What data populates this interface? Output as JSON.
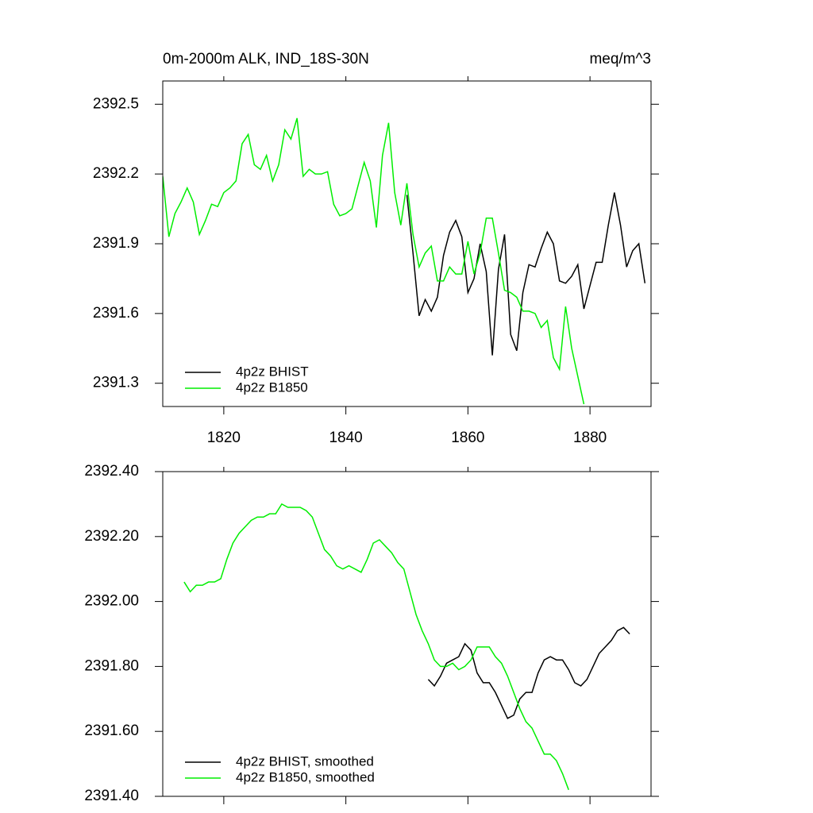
{
  "chart_data": [
    {
      "type": "line",
      "title": "0m-2000m ALK, IND_18S-30N",
      "right_title": "meq/m^3",
      "xlim": [
        1810,
        1890
      ],
      "xticks": [
        1820,
        1840,
        1860,
        1880
      ],
      "ylim": [
        2391.2,
        2392.6
      ],
      "yticks": [
        2391.3,
        2391.6,
        2391.9,
        2392.2,
        2392.5
      ],
      "legend": "lower left",
      "series": [
        {
          "name": "4p2z BHIST",
          "color": "#000000",
          "x": [
            1850,
            1851,
            1852,
            1853,
            1854,
            1855,
            1856,
            1857,
            1858,
            1859,
            1860,
            1861,
            1862,
            1863,
            1864,
            1865,
            1866,
            1867,
            1868,
            1869,
            1870,
            1871,
            1872,
            1873,
            1874,
            1875,
            1876,
            1877,
            1878,
            1879,
            1880,
            1881,
            1882,
            1883,
            1884,
            1885,
            1886,
            1887,
            1888,
            1889
          ],
          "values": [
            2392.11,
            2391.86,
            2391.59,
            2391.66,
            2391.61,
            2391.67,
            2391.85,
            2391.95,
            2392.0,
            2391.93,
            2391.69,
            2391.75,
            2391.9,
            2391.78,
            2391.42,
            2391.79,
            2391.94,
            2391.51,
            2391.44,
            2391.69,
            2391.81,
            2391.8,
            2391.88,
            2391.95,
            2391.9,
            2391.74,
            2391.73,
            2391.76,
            2391.81,
            2391.62,
            2391.72,
            2391.82,
            2391.82,
            2391.98,
            2392.12,
            2391.98,
            2391.8,
            2391.87,
            2391.9,
            2391.73
          ]
        },
        {
          "name": "4p2z B1850",
          "color": "#00ee00",
          "x": [
            1810,
            1811,
            1812,
            1813,
            1814,
            1815,
            1816,
            1817,
            1818,
            1819,
            1820,
            1821,
            1822,
            1823,
            1824,
            1825,
            1826,
            1827,
            1828,
            1829,
            1830,
            1831,
            1832,
            1833,
            1834,
            1835,
            1836,
            1837,
            1838,
            1839,
            1840,
            1841,
            1842,
            1843,
            1844,
            1845,
            1846,
            1847,
            1848,
            1849,
            1850,
            1851,
            1852,
            1853,
            1854,
            1855,
            1856,
            1857,
            1858,
            1859,
            1860,
            1861,
            1862,
            1863,
            1864,
            1865,
            1866,
            1867,
            1868,
            1869,
            1870,
            1871,
            1872,
            1873,
            1874,
            1875,
            1876,
            1877,
            1878,
            1879
          ],
          "values": [
            2392.19,
            2391.93,
            2392.03,
            2392.08,
            2392.14,
            2392.08,
            2391.94,
            2392.0,
            2392.07,
            2392.06,
            2392.12,
            2392.14,
            2392.17,
            2392.33,
            2392.37,
            2392.24,
            2392.22,
            2392.28,
            2392.17,
            2392.24,
            2392.39,
            2392.35,
            2392.44,
            2392.19,
            2392.22,
            2392.2,
            2392.2,
            2392.21,
            2392.07,
            2392.02,
            2392.03,
            2392.05,
            2392.15,
            2392.25,
            2392.17,
            2391.97,
            2392.28,
            2392.42,
            2392.12,
            2391.98,
            2392.16,
            2391.94,
            2391.8,
            2391.86,
            2391.89,
            2391.74,
            2391.74,
            2391.8,
            2391.77,
            2391.77,
            2391.91,
            2391.77,
            2391.86,
            2392.01,
            2392.01,
            2391.86,
            2391.7,
            2391.69,
            2391.67,
            2391.61,
            2391.61,
            2391.6,
            2391.54,
            2391.57,
            2391.41,
            2391.36,
            2391.63,
            2391.45,
            2391.33,
            2391.21
          ]
        }
      ]
    },
    {
      "type": "line",
      "xlim": [
        1810,
        1890
      ],
      "xticks": [
        1820,
        1840,
        1860,
        1880
      ],
      "xtick_labels": false,
      "ylim": [
        2391.4,
        2392.4
      ],
      "yticks": [
        {
          "value": 2391.4,
          "label": "2391.40"
        },
        {
          "value": 2391.6,
          "label": "2391.60"
        },
        {
          "value": 2391.8,
          "label": "2391.80"
        },
        {
          "value": 2392.0,
          "label": "2392.00"
        },
        {
          "value": 2392.2,
          "label": "2392.20"
        },
        {
          "value": 2392.4,
          "label": "2392.40"
        }
      ],
      "legend": "lower left",
      "series": [
        {
          "name": "4p2z BHIST, smoothed",
          "color": "#000000",
          "x": [
            1853.5,
            1854.5,
            1855.5,
            1856.5,
            1857.5,
            1858.5,
            1859.5,
            1860.5,
            1861.5,
            1862.5,
            1863.5,
            1864.5,
            1865.5,
            1866.5,
            1867.5,
            1868.5,
            1869.5,
            1870.5,
            1871.5,
            1872.5,
            1873.5,
            1874.5,
            1875.5,
            1876.5,
            1877.5,
            1878.5,
            1879.5,
            1880.5,
            1881.5,
            1882.5,
            1883.5,
            1884.5,
            1885.5,
            1886.5
          ],
          "values": [
            2391.76,
            2391.74,
            2391.77,
            2391.81,
            2391.82,
            2391.83,
            2391.87,
            2391.85,
            2391.78,
            2391.75,
            2391.75,
            2391.72,
            2391.68,
            2391.64,
            2391.65,
            2391.7,
            2391.72,
            2391.72,
            2391.78,
            2391.82,
            2391.83,
            2391.82,
            2391.82,
            2391.79,
            2391.75,
            2391.74,
            2391.76,
            2391.8,
            2391.84,
            2391.86,
            2391.88,
            2391.91,
            2391.92,
            2391.9
          ]
        },
        {
          "name": "4p2z B1850, smoothed",
          "color": "#00ee00",
          "x": [
            1813.5,
            1814.5,
            1815.5,
            1816.5,
            1817.5,
            1818.5,
            1819.5,
            1820.5,
            1821.5,
            1822.5,
            1823.5,
            1824.5,
            1825.5,
            1826.5,
            1827.5,
            1828.5,
            1829.5,
            1830.5,
            1831.5,
            1832.5,
            1833.5,
            1834.5,
            1835.5,
            1836.5,
            1837.5,
            1838.5,
            1839.5,
            1840.5,
            1841.5,
            1842.5,
            1843.5,
            1844.5,
            1845.5,
            1846.5,
            1847.5,
            1848.5,
            1849.5,
            1850.5,
            1851.5,
            1852.5,
            1853.5,
            1854.5,
            1855.5,
            1856.5,
            1857.5,
            1858.5,
            1859.5,
            1860.5,
            1861.5,
            1862.5,
            1863.5,
            1864.5,
            1865.5,
            1866.5,
            1867.5,
            1868.5,
            1869.5,
            1870.5,
            1871.5,
            1872.5,
            1873.5,
            1874.5,
            1875.5,
            1876.5
          ],
          "values": [
            2392.06,
            2392.03,
            2392.05,
            2392.05,
            2392.06,
            2392.06,
            2392.07,
            2392.13,
            2392.18,
            2392.21,
            2392.23,
            2392.25,
            2392.26,
            2392.26,
            2392.27,
            2392.27,
            2392.3,
            2392.29,
            2392.29,
            2392.29,
            2392.28,
            2392.26,
            2392.21,
            2392.16,
            2392.14,
            2392.11,
            2392.1,
            2392.11,
            2392.1,
            2392.09,
            2392.13,
            2392.18,
            2392.19,
            2392.17,
            2392.15,
            2392.12,
            2392.1,
            2392.03,
            2391.96,
            2391.91,
            2391.87,
            2391.82,
            2391.8,
            2391.8,
            2391.81,
            2391.79,
            2391.8,
            2391.82,
            2391.86,
            2391.86,
            2391.86,
            2391.83,
            2391.81,
            2391.77,
            2391.72,
            2391.67,
            2391.63,
            2391.61,
            2391.57,
            2391.53,
            2391.53,
            2391.51,
            2391.47,
            2391.42
          ]
        }
      ]
    }
  ]
}
